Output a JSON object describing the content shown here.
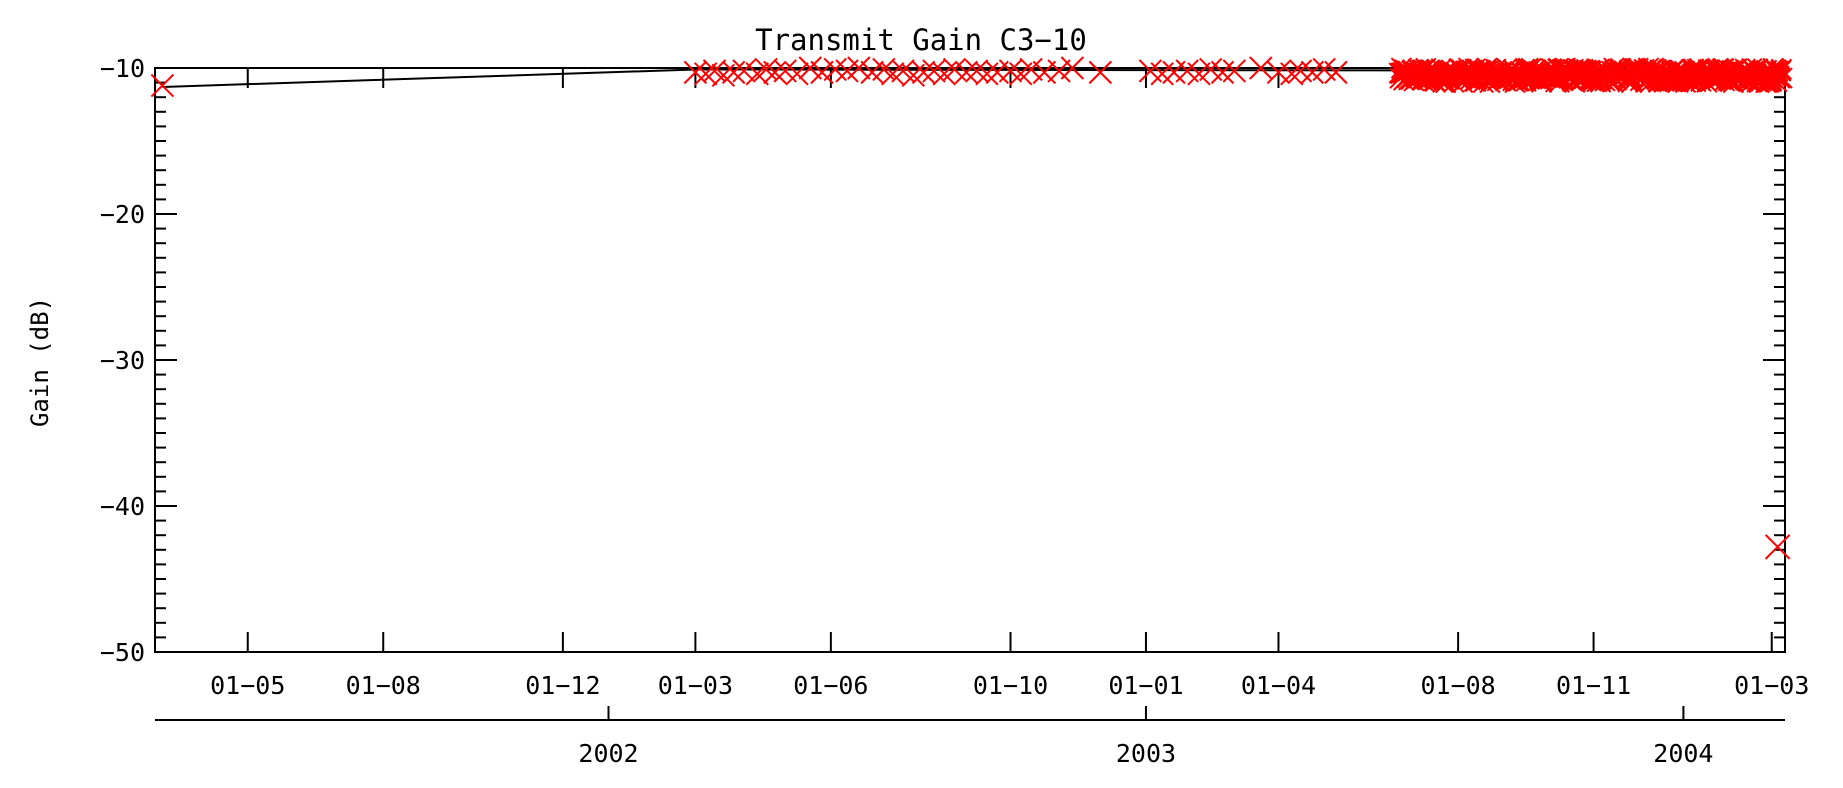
{
  "chart_data": {
    "type": "scatter",
    "title": "Transmit Gain C3−10",
    "xlabel": "",
    "ylabel": "Gain (dB)",
    "x_range": [
      "2001-02-27",
      "2004-03-10"
    ],
    "ylim": [
      -50,
      -10
    ],
    "y_ticks": [
      -10,
      -20,
      -30,
      -40,
      -50
    ],
    "y_tick_labels": [
      "−10",
      "−20",
      "−30",
      "−40",
      "−50"
    ],
    "x_month_ticks": [
      {
        "date": "2001-05-01",
        "label": "01−05"
      },
      {
        "date": "2001-08-01",
        "label": "01−08"
      },
      {
        "date": "2001-12-01",
        "label": "01−12"
      },
      {
        "date": "2002-03-01",
        "label": "01−03"
      },
      {
        "date": "2002-06-01",
        "label": "01−06"
      },
      {
        "date": "2002-10-01",
        "label": "01−10"
      },
      {
        "date": "2003-01-01",
        "label": "01−01"
      },
      {
        "date": "2003-04-01",
        "label": "01−04"
      },
      {
        "date": "2003-08-01",
        "label": "01−08"
      },
      {
        "date": "2003-11-01",
        "label": "01−11"
      },
      {
        "date": "2004-03-01",
        "label": "01−03"
      }
    ],
    "x_year_ticks": [
      {
        "date": "2002-01-01",
        "label": "2002"
      },
      {
        "date": "2003-01-01",
        "label": "2003"
      },
      {
        "date": "2004-01-01",
        "label": "2004"
      }
    ],
    "grid": false,
    "colors": {
      "marker": "#ff0000",
      "line": "#000000",
      "axes": "#000000"
    },
    "marker": "x",
    "line_points": [
      {
        "x": "2001-03-04",
        "y": -11.3
      },
      {
        "x": "2002-03-01",
        "y": -10.1
      },
      {
        "x": "2004-03-05",
        "y": -10.2
      }
    ],
    "series": [
      {
        "points": [
          {
            "x": "2001-03-04",
            "y": -11.2
          },
          {
            "x": "2002-03-01",
            "y": -10.3
          },
          {
            "x": "2002-03-08",
            "y": -10.4
          },
          {
            "x": "2002-03-14",
            "y": -10.2
          },
          {
            "x": "2002-03-20",
            "y": -10.5
          },
          {
            "x": "2002-03-27",
            "y": -10.3
          },
          {
            "x": "2002-04-03",
            "y": -10.2
          },
          {
            "x": "2002-04-12",
            "y": -10.4
          },
          {
            "x": "2002-04-18",
            "y": -10.1
          },
          {
            "x": "2002-04-24",
            "y": -10.3
          },
          {
            "x": "2002-05-01",
            "y": -10.2
          },
          {
            "x": "2002-05-09",
            "y": -10.4
          },
          {
            "x": "2002-05-18",
            "y": -10.0
          },
          {
            "x": "2002-05-26",
            "y": -10.3
          },
          {
            "x": "2002-06-04",
            "y": -10.1
          },
          {
            "x": "2002-06-12",
            "y": -10.2
          },
          {
            "x": "2002-06-20",
            "y": -10.0
          },
          {
            "x": "2002-06-29",
            "y": -10.3
          },
          {
            "x": "2002-07-07",
            "y": -10.1
          },
          {
            "x": "2002-07-13",
            "y": -10.4
          },
          {
            "x": "2002-07-20",
            "y": -10.2
          },
          {
            "x": "2002-07-27",
            "y": -10.5
          },
          {
            "x": "2002-08-03",
            "y": -10.3
          },
          {
            "x": "2002-08-10",
            "y": -10.2
          },
          {
            "x": "2002-08-17",
            "y": -10.4
          },
          {
            "x": "2002-08-24",
            "y": -10.1
          },
          {
            "x": "2002-09-01",
            "y": -10.3
          },
          {
            "x": "2002-09-08",
            "y": -10.2
          },
          {
            "x": "2002-09-15",
            "y": -10.4
          },
          {
            "x": "2002-09-22",
            "y": -10.3
          },
          {
            "x": "2002-10-01",
            "y": -10.2
          },
          {
            "x": "2002-10-08",
            "y": -10.4
          },
          {
            "x": "2002-10-15",
            "y": -10.1
          },
          {
            "x": "2002-10-24",
            "y": -10.3
          },
          {
            "x": "2002-11-03",
            "y": -10.2
          },
          {
            "x": "2002-11-12",
            "y": -10.0
          },
          {
            "x": "2002-12-01",
            "y": -10.3
          },
          {
            "x": "2003-01-04",
            "y": -10.2
          },
          {
            "x": "2003-01-12",
            "y": -10.4
          },
          {
            "x": "2003-01-20",
            "y": -10.3
          },
          {
            "x": "2003-01-29",
            "y": -10.2
          },
          {
            "x": "2003-02-06",
            "y": -10.4
          },
          {
            "x": "2003-02-14",
            "y": -10.1
          },
          {
            "x": "2003-02-22",
            "y": -10.3
          },
          {
            "x": "2003-03-02",
            "y": -10.2
          },
          {
            "x": "2003-03-20",
            "y": -10.0
          },
          {
            "x": "2003-04-01",
            "y": -10.3
          },
          {
            "x": "2003-04-10",
            "y": -10.4
          },
          {
            "x": "2003-04-16",
            "y": -10.2
          },
          {
            "x": "2003-04-24",
            "y": -10.3
          },
          {
            "x": "2003-05-02",
            "y": -10.1
          },
          {
            "x": "2003-05-10",
            "y": -10.3
          }
        ]
      }
    ],
    "dense_cluster": {
      "x_start": "2003-06-22",
      "x_end": "2004-03-08",
      "y_min": -11.0,
      "y_max": -10.0,
      "count": 520
    },
    "outliers": [
      {
        "x": "2004-03-05",
        "y": -42.8
      }
    ]
  }
}
